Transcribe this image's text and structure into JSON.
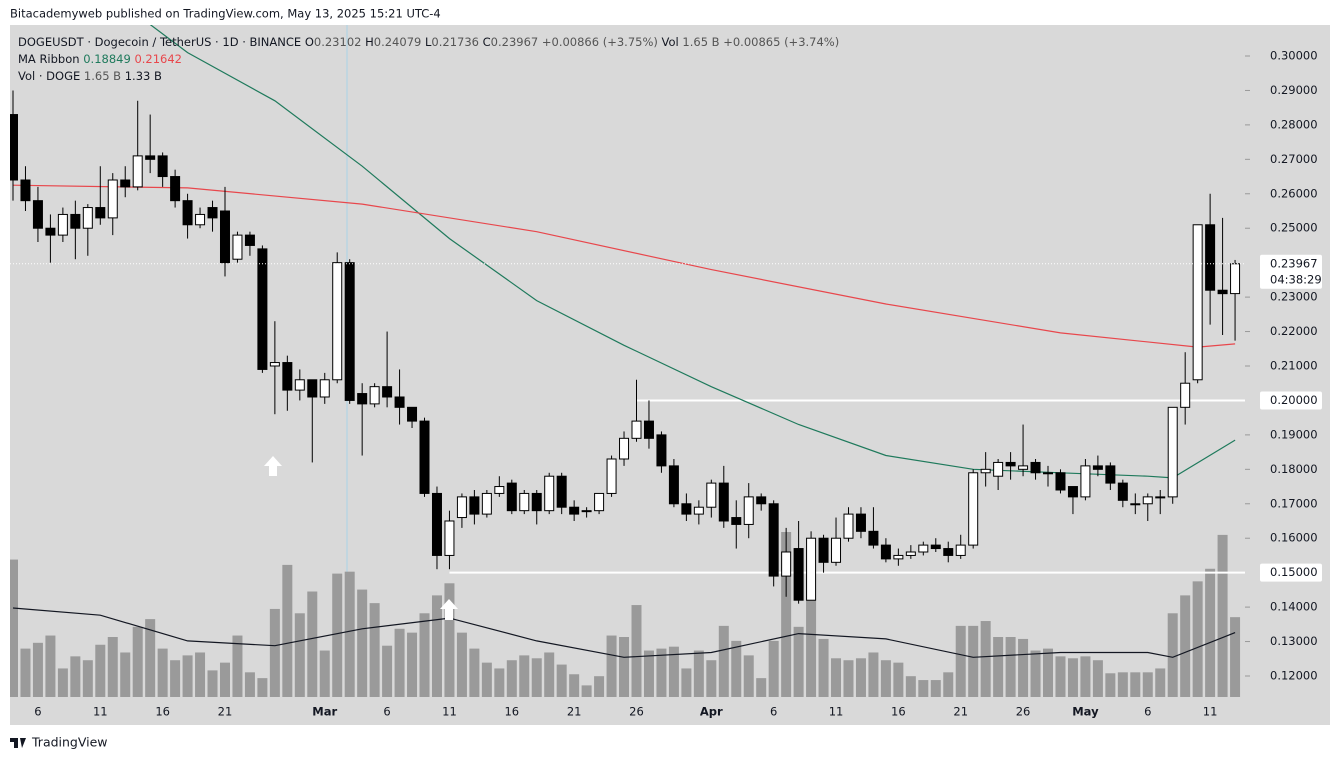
{
  "header": "Bitacademyweb published on TradingView.com, May 13, 2025 15:21 UTC-4",
  "footer": "TradingView",
  "chart_data": {
    "type": "candlestick",
    "legend": {
      "symbol": "DOGEUSDT · Dogecoin / TetherUS · 1D · BINANCE",
      "ohlc_letters": [
        "O",
        "H",
        "L",
        "C"
      ],
      "change": "+0.00866 (+3.75%)",
      "vol_letter": "Vol",
      "vol_value": "1.65 B",
      "vol_change": "+0.00865 (+3.74%)",
      "ma_name": "MA Ribbon",
      "vol_name": "Vol · DOGE",
      "vol_ma": "1.33 B"
    },
    "dates": [
      "2025-02-04",
      "2025-02-05",
      "2025-02-06",
      "2025-02-07",
      "2025-02-08",
      "2025-02-09",
      "2025-02-10",
      "2025-02-11",
      "2025-02-12",
      "2025-02-13",
      "2025-02-14",
      "2025-02-15",
      "2025-02-16",
      "2025-02-17",
      "2025-02-18",
      "2025-02-19",
      "2025-02-20",
      "2025-02-21",
      "2025-02-22",
      "2025-02-23",
      "2025-02-24",
      "2025-02-25",
      "2025-02-26",
      "2025-02-27",
      "2025-02-28",
      "2025-03-01",
      "2025-03-02",
      "2025-03-03",
      "2025-03-04",
      "2025-03-05",
      "2025-03-06",
      "2025-03-07",
      "2025-03-08",
      "2025-03-09",
      "2025-03-10",
      "2025-03-11",
      "2025-03-12",
      "2025-03-13",
      "2025-03-14",
      "2025-03-15",
      "2025-03-16",
      "2025-03-17",
      "2025-03-18",
      "2025-03-19",
      "2025-03-20",
      "2025-03-21",
      "2025-03-22",
      "2025-03-23",
      "2025-03-24",
      "2025-03-25",
      "2025-03-26",
      "2025-03-27",
      "2025-03-28",
      "2025-03-29",
      "2025-03-30",
      "2025-03-31",
      "2025-04-01",
      "2025-04-02",
      "2025-04-03",
      "2025-04-04",
      "2025-04-05",
      "2025-04-06",
      "2025-04-07",
      "2025-04-08",
      "2025-04-09",
      "2025-04-10",
      "2025-04-11",
      "2025-04-12",
      "2025-04-13",
      "2025-04-14",
      "2025-04-15",
      "2025-04-16",
      "2025-04-17",
      "2025-04-18",
      "2025-04-19",
      "2025-04-20",
      "2025-04-21",
      "2025-04-22",
      "2025-04-23",
      "2025-04-24",
      "2025-04-25",
      "2025-04-26",
      "2025-04-27",
      "2025-04-28",
      "2025-04-29",
      "2025-04-30",
      "2025-05-01",
      "2025-05-02",
      "2025-05-03",
      "2025-05-04",
      "2025-05-05",
      "2025-05-06",
      "2025-05-07",
      "2025-05-08",
      "2025-05-09",
      "2025-05-10",
      "2025-05-11",
      "2025-05-12",
      "2025-05-13"
    ],
    "open": [
      0.283,
      0.264,
      0.258,
      0.25,
      0.248,
      0.254,
      0.25,
      0.256,
      0.253,
      0.264,
      0.262,
      0.271,
      0.271,
      0.265,
      0.258,
      0.251,
      0.256,
      0.255,
      0.241,
      0.248,
      0.244,
      0.21,
      0.211,
      0.203,
      0.206,
      0.201,
      0.206,
      0.24,
      0.202,
      0.199,
      0.204,
      0.201,
      0.198,
      0.194,
      0.173,
      0.155,
      0.166,
      0.172,
      0.167,
      0.173,
      0.176,
      0.168,
      0.173,
      0.168,
      0.178,
      0.169,
      0.168,
      0.168,
      0.173,
      0.183,
      0.189,
      0.194,
      0.19,
      0.181,
      0.17,
      0.167,
      0.169,
      0.176,
      0.166,
      0.164,
      0.172,
      0.17,
      0.149,
      0.157,
      0.142,
      0.16,
      0.153,
      0.16,
      0.167,
      0.162,
      0.158,
      0.154,
      0.155,
      0.156,
      0.158,
      0.157,
      0.155,
      0.158,
      0.179,
      0.178,
      0.182,
      0.18,
      0.182,
      0.179,
      0.179,
      0.175,
      0.172,
      0.181,
      0.181,
      0.176,
      0.17,
      0.17,
      0.172,
      0.172,
      0.198,
      0.206,
      0.251,
      0.232,
      0.23102
    ],
    "high": [
      0.29,
      0.268,
      0.262,
      0.254,
      0.256,
      0.258,
      0.257,
      0.268,
      0.266,
      0.268,
      0.287,
      0.283,
      0.272,
      0.267,
      0.26,
      0.256,
      0.258,
      0.262,
      0.249,
      0.249,
      0.245,
      0.223,
      0.213,
      0.209,
      0.206,
      0.208,
      0.243,
      0.241,
      0.205,
      0.205,
      0.22,
      0.209,
      0.198,
      0.195,
      0.175,
      0.168,
      0.173,
      0.174,
      0.174,
      0.178,
      0.177,
      0.174,
      0.174,
      0.179,
      0.179,
      0.171,
      0.169,
      0.173,
      0.184,
      0.191,
      0.206,
      0.2,
      0.191,
      0.183,
      0.173,
      0.171,
      0.177,
      0.181,
      0.171,
      0.176,
      0.173,
      0.171,
      0.163,
      0.165,
      0.162,
      0.161,
      0.166,
      0.169,
      0.169,
      0.169,
      0.16,
      0.157,
      0.158,
      0.159,
      0.16,
      0.159,
      0.161,
      0.18,
      0.185,
      0.183,
      0.185,
      0.193,
      0.183,
      0.181,
      0.18,
      0.175,
      0.183,
      0.184,
      0.182,
      0.177,
      0.173,
      0.173,
      0.174,
      0.198,
      0.214,
      0.251,
      0.26,
      0.253,
      0.24079
    ],
    "low": [
      0.258,
      0.255,
      0.246,
      0.24,
      0.246,
      0.241,
      0.242,
      0.251,
      0.248,
      0.259,
      0.261,
      0.266,
      0.262,
      0.256,
      0.247,
      0.25,
      0.249,
      0.236,
      0.24,
      0.242,
      0.208,
      0.196,
      0.197,
      0.2,
      0.182,
      0.199,
      0.205,
      0.199,
      0.184,
      0.198,
      0.198,
      0.193,
      0.192,
      0.172,
      0.151,
      0.151,
      0.163,
      0.164,
      0.166,
      0.172,
      0.167,
      0.167,
      0.164,
      0.167,
      0.167,
      0.165,
      0.166,
      0.167,
      0.172,
      0.181,
      0.188,
      0.186,
      0.179,
      0.169,
      0.165,
      0.164,
      0.166,
      0.163,
      0.157,
      0.16,
      0.168,
      0.146,
      0.143,
      0.141,
      0.142,
      0.15,
      0.152,
      0.159,
      0.16,
      0.157,
      0.153,
      0.152,
      0.154,
      0.155,
      0.156,
      0.153,
      0.154,
      0.157,
      0.175,
      0.174,
      0.177,
      0.178,
      0.177,
      0.175,
      0.173,
      0.167,
      0.171,
      0.178,
      0.174,
      0.169,
      0.167,
      0.165,
      0.167,
      0.17,
      0.193,
      0.205,
      0.222,
      0.219,
      0.21736
    ],
    "close": [
      0.264,
      0.258,
      0.25,
      0.248,
      0.254,
      0.25,
      0.256,
      0.253,
      0.264,
      0.262,
      0.271,
      0.27,
      0.265,
      0.258,
      0.251,
      0.254,
      0.253,
      0.24,
      0.248,
      0.245,
      0.209,
      0.211,
      0.203,
      0.206,
      0.201,
      0.206,
      0.24,
      0.2,
      0.199,
      0.204,
      0.201,
      0.198,
      0.194,
      0.173,
      0.155,
      0.165,
      0.172,
      0.167,
      0.173,
      0.175,
      0.168,
      0.173,
      0.168,
      0.178,
      0.169,
      0.167,
      0.168,
      0.173,
      0.183,
      0.189,
      0.194,
      0.189,
      0.181,
      0.17,
      0.167,
      0.169,
      0.176,
      0.165,
      0.164,
      0.172,
      0.17,
      0.149,
      0.156,
      0.142,
      0.16,
      0.153,
      0.16,
      0.167,
      0.162,
      0.158,
      0.154,
      0.155,
      0.156,
      0.158,
      0.157,
      0.155,
      0.158,
      0.179,
      0.18,
      0.182,
      0.181,
      0.181,
      0.179,
      0.179,
      0.174,
      0.172,
      0.181,
      0.18,
      0.176,
      0.171,
      0.17,
      0.172,
      0.172,
      0.198,
      0.205,
      0.251,
      0.232,
      0.231,
      0.23967
    ],
    "volume": [
      2.84,
      1.0,
      1.12,
      1.27,
      0.59,
      0.84,
      0.76,
      1.08,
      1.24,
      0.92,
      1.45,
      1.61,
      1.0,
      0.76,
      0.86,
      0.92,
      0.55,
      0.71,
      1.27,
      0.51,
      0.39,
      1.82,
      2.73,
      1.73,
      2.18,
      0.96,
      2.55,
      2.59,
      2.22,
      1.94,
      1.06,
      1.41,
      1.33,
      1.73,
      2.1,
      2.35,
      1.33,
      1.0,
      0.71,
      0.59,
      0.76,
      0.86,
      0.8,
      0.92,
      0.67,
      0.47,
      0.24,
      0.43,
      1.27,
      1.24,
      1.9,
      0.96,
      1.0,
      1.04,
      0.59,
      0.96,
      0.76,
      1.47,
      1.16,
      0.86,
      0.39,
      1.16,
      3.41,
      1.45,
      3.04,
      1.2,
      0.8,
      0.76,
      0.8,
      0.92,
      0.76,
      0.71,
      0.43,
      0.35,
      0.35,
      0.51,
      1.47,
      1.47,
      1.57,
      1.24,
      1.24,
      1.2,
      0.96,
      1.0,
      0.84,
      0.8,
      0.84,
      0.76,
      0.49,
      0.51,
      0.51,
      0.51,
      0.59,
      1.73,
      2.1,
      2.39,
      2.65,
      3.35,
      1.65
    ],
    "volume_color": "#9a9a9a",
    "volume_ma": {
      "color": "#131722",
      "dates": [
        "2025-02-04",
        "2025-02-11",
        "2025-02-18",
        "2025-02-25",
        "2025-03-04",
        "2025-03-11",
        "2025-03-18",
        "2025-03-25",
        "2025-04-01",
        "2025-04-08",
        "2025-04-15",
        "2025-04-22",
        "2025-04-29",
        "2025-05-06",
        "2025-05-08",
        "2025-05-13"
      ],
      "values": [
        1.84,
        1.69,
        1.16,
        1.06,
        1.41,
        1.63,
        1.16,
        0.82,
        0.92,
        1.31,
        1.2,
        0.82,
        0.92,
        0.92,
        0.82,
        1.33
      ]
    },
    "ma_ribbon": [
      {
        "color": "#1f7a5c",
        "dates": [
          "2025-02-04",
          "2025-02-11",
          "2025-02-18",
          "2025-02-25",
          "2025-03-04",
          "2025-03-11",
          "2025-03-18",
          "2025-03-25",
          "2025-04-01",
          "2025-04-08",
          "2025-04-15",
          "2025-04-22",
          "2025-04-29",
          "2025-05-06",
          "2025-05-08",
          "2025-05-13"
        ],
        "values": [
          0.335,
          0.32,
          0.301,
          0.287,
          0.268,
          0.247,
          0.229,
          0.216,
          0.204,
          0.193,
          0.184,
          0.18,
          0.179,
          0.178,
          0.1775,
          0.18849
        ]
      },
      {
        "color": "#e8474c",
        "dates": [
          "2025-02-04",
          "2025-02-18",
          "2025-03-04",
          "2025-03-18",
          "2025-04-01",
          "2025-04-15",
          "2025-04-29",
          "2025-05-10",
          "2025-05-13"
        ],
        "values": [
          0.2625,
          0.2617,
          0.257,
          0.249,
          0.238,
          0.228,
          0.2196,
          0.2155,
          0.21642
        ]
      }
    ],
    "levels": [
      {
        "value": 0.2,
        "label": "0.20000",
        "start": "2025-03-26"
      },
      {
        "value": 0.15,
        "label": "0.15000",
        "start": "2025-03-11"
      }
    ],
    "countdown": "04:38:29",
    "ylim": [
      0.1139,
      0.309
    ],
    "yticks": [
      {
        "value": 0.12,
        "label": "0.12000"
      },
      {
        "value": 0.13,
        "label": "0.13000"
      },
      {
        "value": 0.14,
        "label": "0.14000"
      },
      {
        "value": 0.16,
        "label": "0.16000"
      },
      {
        "value": 0.17,
        "label": "0.17000"
      },
      {
        "value": 0.18,
        "label": "0.18000"
      },
      {
        "value": 0.19,
        "label": "0.19000"
      },
      {
        "value": 0.21,
        "label": "0.21000"
      },
      {
        "value": 0.22,
        "label": "0.22000"
      },
      {
        "value": 0.23,
        "label": "0.23000"
      },
      {
        "value": 0.25,
        "label": "0.25000"
      },
      {
        "value": 0.26,
        "label": "0.26000"
      },
      {
        "value": 0.27,
        "label": "0.27000"
      },
      {
        "value": 0.28,
        "label": "0.28000"
      },
      {
        "value": 0.29,
        "label": "0.29000"
      },
      {
        "value": 0.3,
        "label": "0.30000"
      }
    ],
    "xticks": [
      {
        "value": "2025-02-06",
        "label": "6"
      },
      {
        "value": "2025-02-11",
        "label": "11"
      },
      {
        "value": "2025-02-16",
        "label": "16"
      },
      {
        "value": "2025-02-21",
        "label": "21"
      },
      {
        "value": "2025-03-01",
        "label": "Mar"
      },
      {
        "value": "2025-03-06",
        "label": "6"
      },
      {
        "value": "2025-03-11",
        "label": "11"
      },
      {
        "value": "2025-03-16",
        "label": "16"
      },
      {
        "value": "2025-03-21",
        "label": "21"
      },
      {
        "value": "2025-03-26",
        "label": "26"
      },
      {
        "value": "2025-04-01",
        "label": "Apr"
      },
      {
        "value": "2025-04-06",
        "label": "6"
      },
      {
        "value": "2025-04-11",
        "label": "11"
      },
      {
        "value": "2025-04-16",
        "label": "16"
      },
      {
        "value": "2025-04-21",
        "label": "21"
      },
      {
        "value": "2025-04-26",
        "label": "26"
      },
      {
        "value": "2025-05-01",
        "label": "May"
      },
      {
        "value": "2025-05-06",
        "label": "6"
      },
      {
        "value": "2025-05-11",
        "label": "11"
      }
    ]
  }
}
